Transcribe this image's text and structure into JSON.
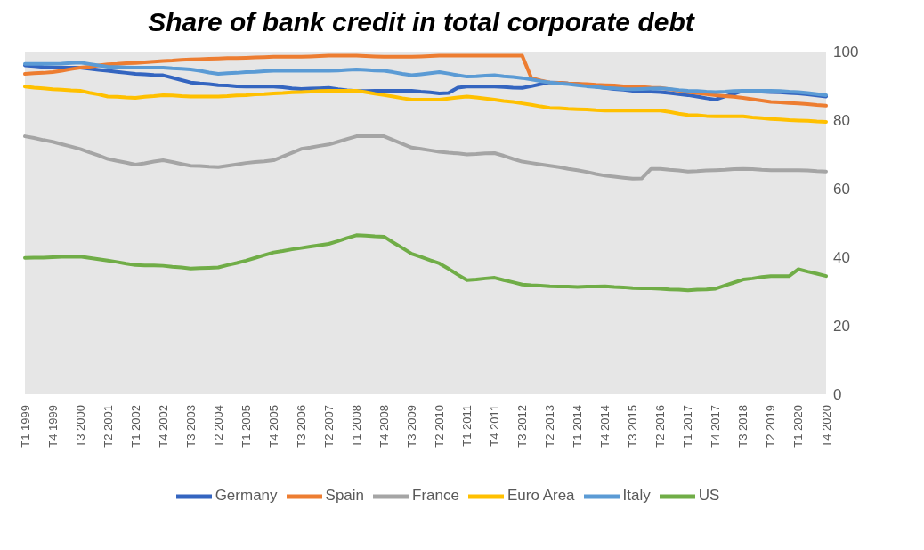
{
  "chart_data": {
    "type": "line",
    "title": "Share of bank credit in total corporate debt",
    "categories": [
      "T1 1999",
      null,
      null,
      "T4 1999",
      null,
      null,
      "T3 2000",
      null,
      null,
      "T2 2001",
      null,
      null,
      "T1 2002",
      null,
      null,
      "T4 2002",
      null,
      null,
      "T3 2003",
      null,
      null,
      "T2 2004",
      null,
      null,
      "T1 2005",
      null,
      null,
      "T4 2005",
      null,
      null,
      "T3 2006",
      null,
      null,
      "T2 2007",
      null,
      null,
      "T1 2008",
      null,
      null,
      "T4 2008",
      null,
      null,
      "T3 2009",
      null,
      null,
      "T2 2010",
      null,
      null,
      "T1 2011",
      null,
      null,
      "T4 2011",
      null,
      null,
      "T3 2012",
      null,
      null,
      "T2 2013",
      null,
      null,
      "T1 2014",
      null,
      null,
      "T4 2014",
      null,
      null,
      "T3 2015",
      null,
      null,
      "T2 2016",
      null,
      null,
      "T1 2017",
      null,
      null,
      "T4 2017",
      null,
      null,
      "T3 2018",
      null,
      null,
      "T2 2019",
      null,
      null,
      "T1 2020",
      null,
      null,
      "T4 2020"
    ],
    "series": [
      {
        "name": "Germany",
        "color": "#3465c0",
        "values": [
          96,
          95.8,
          95.5,
          95.3,
          95.3,
          95.3,
          95.3,
          95,
          94.7,
          94.4,
          94.1,
          93.8,
          93.5,
          93.4,
          93.2,
          93.1,
          92.4,
          91.7,
          91,
          90.7,
          90.5,
          90.2,
          90.1,
          89.9,
          89.8,
          89.8,
          89.8,
          89.8,
          89.6,
          89.3,
          89.1,
          89.2,
          89.3,
          89.4,
          89,
          88.7,
          88.5,
          88.5,
          88.6,
          88.6,
          88.6,
          88.6,
          88.6,
          88.3,
          88.1,
          87.8,
          87.9,
          89.5,
          89.8,
          89.8,
          89.8,
          89.8,
          89.7,
          89.5,
          89.4,
          89.9,
          90.5,
          91,
          90.9,
          90.7,
          90.6,
          90.2,
          89.8,
          89.4,
          89.1,
          88.9,
          88.6,
          88.5,
          88.3,
          88.2,
          87.9,
          87.6,
          87.3,
          86.9,
          86.4,
          86,
          86.9,
          87.7,
          88.6,
          88.5,
          88.3,
          88.2,
          88.1,
          87.9,
          87.8,
          87.5,
          87.2,
          86.9
        ]
      },
      {
        "name": "Spain",
        "color": "#ed7d31",
        "values": [
          93.5,
          93.7,
          93.8,
          94,
          94.4,
          94.9,
          95.3,
          95.6,
          96,
          96.3,
          96.4,
          96.6,
          96.7,
          96.9,
          97.1,
          97.3,
          97.4,
          97.6,
          97.7,
          97.8,
          97.9,
          98,
          98.1,
          98.1,
          98.2,
          98.3,
          98.4,
          98.5,
          98.5,
          98.5,
          98.5,
          98.6,
          98.7,
          98.8,
          98.8,
          98.8,
          98.8,
          98.7,
          98.6,
          98.5,
          98.5,
          98.5,
          98.5,
          98.6,
          98.7,
          98.8,
          98.8,
          98.8,
          98.8,
          98.8,
          98.8,
          98.8,
          98.8,
          98.8,
          98.8,
          92.3,
          91.6,
          91,
          90.9,
          90.7,
          90.6,
          90.5,
          90.3,
          90.2,
          90.1,
          89.9,
          89.8,
          89.7,
          89.5,
          89.4,
          89,
          88.6,
          88.2,
          87.9,
          87.6,
          87.3,
          87,
          86.8,
          86.5,
          86.1,
          85.7,
          85.3,
          85.2,
          85,
          84.9,
          84.7,
          84.4,
          84.2
        ]
      },
      {
        "name": "France",
        "color": "#a5a5a5",
        "values": [
          75.3,
          74.8,
          74.2,
          73.7,
          73,
          72.3,
          71.6,
          70.6,
          69.7,
          68.7,
          68.1,
          67.6,
          67,
          67.4,
          67.9,
          68.3,
          67.8,
          67.2,
          66.7,
          66.6,
          66.4,
          66.3,
          66.7,
          67.1,
          67.5,
          67.8,
          68,
          68.3,
          69.4,
          70.5,
          71.6,
          72,
          72.5,
          72.9,
          73.7,
          74.5,
          75.3,
          75.3,
          75.3,
          75.3,
          74.2,
          73.1,
          72,
          71.6,
          71.2,
          70.8,
          70.5,
          70.3,
          70,
          70.1,
          70.3,
          70.4,
          69.6,
          68.7,
          67.9,
          67.5,
          67.1,
          66.7,
          66.3,
          65.8,
          65.4,
          64.9,
          64.3,
          63.8,
          63.5,
          63.2,
          62.9,
          63,
          65.8,
          65.8,
          65.5,
          65.3,
          65,
          65.1,
          65.3,
          65.4,
          65.5,
          65.7,
          65.8,
          65.7,
          65.5,
          65.4,
          65.4,
          65.4,
          65.4,
          65.3,
          65.1,
          65
        ]
      },
      {
        "name": "Euro Area",
        "color": "#ffc000",
        "values": [
          89.8,
          89.5,
          89.3,
          89,
          88.9,
          88.7,
          88.6,
          88,
          87.5,
          86.9,
          86.8,
          86.6,
          86.5,
          86.8,
          87,
          87.3,
          87.2,
          87,
          86.9,
          86.9,
          86.9,
          86.9,
          87,
          87.2,
          87.3,
          87.5,
          87.6,
          87.8,
          87.9,
          88.1,
          88.2,
          88.3,
          88.5,
          88.6,
          88.6,
          88.6,
          88.6,
          88.2,
          87.7,
          87.3,
          86.9,
          86.4,
          86,
          86,
          86,
          86,
          86.3,
          86.6,
          86.9,
          86.6,
          86.3,
          86,
          85.6,
          85.3,
          84.9,
          84.5,
          84,
          83.6,
          83.5,
          83.3,
          83.2,
          83.1,
          82.9,
          82.8,
          82.8,
          82.8,
          82.8,
          82.8,
          82.8,
          82.8,
          82.4,
          81.9,
          81.5,
          81.4,
          81.2,
          81.1,
          81.1,
          81.1,
          81.1,
          80.8,
          80.6,
          80.3,
          80.2,
          80,
          79.9,
          79.8,
          79.6,
          79.5
        ]
      },
      {
        "name": "Italy",
        "color": "#5b9bd5",
        "values": [
          96.4,
          96.4,
          96.4,
          96.4,
          96.5,
          96.7,
          96.8,
          96.4,
          96,
          95.6,
          95.5,
          95.4,
          95.3,
          95.3,
          95.3,
          95.3,
          95.1,
          95,
          94.8,
          94.4,
          93.9,
          93.5,
          93.7,
          93.8,
          94,
          94.1,
          94.3,
          94.4,
          94.4,
          94.4,
          94.4,
          94.4,
          94.4,
          94.4,
          94.5,
          94.7,
          94.8,
          94.7,
          94.5,
          94.4,
          94,
          93.5,
          93.1,
          93.4,
          93.7,
          94,
          93.6,
          93.1,
          92.7,
          92.8,
          93,
          93.1,
          92.8,
          92.6,
          92.3,
          91.9,
          91.4,
          91,
          90.7,
          90.5,
          90.2,
          89.9,
          89.7,
          89.4,
          89.3,
          89.1,
          89,
          89.1,
          89.2,
          89.3,
          89.1,
          88.8,
          88.6,
          88.5,
          88.3,
          88.2,
          88.3,
          88.5,
          88.6,
          88.6,
          88.6,
          88.6,
          88.5,
          88.3,
          88.2,
          87.9,
          87.6,
          87.3
        ]
      },
      {
        "name": "US",
        "color": "#70ad47",
        "values": [
          39.8,
          39.9,
          39.9,
          40,
          40.1,
          40.1,
          40.2,
          39.8,
          39.4,
          39,
          38.6,
          38.1,
          37.7,
          37.6,
          37.6,
          37.5,
          37.2,
          37,
          36.7,
          36.8,
          36.9,
          37,
          37.7,
          38.3,
          39,
          39.8,
          40.6,
          41.4,
          41.8,
          42.3,
          42.7,
          43.1,
          43.5,
          43.9,
          44.7,
          45.6,
          46.4,
          46.3,
          46.1,
          46,
          44.3,
          42.7,
          41,
          40.1,
          39.1,
          38.2,
          36.6,
          34.9,
          33.3,
          33.5,
          33.8,
          34,
          33.3,
          32.7,
          32,
          31.8,
          31.7,
          31.5,
          31.4,
          31.4,
          31.3,
          31.4,
          31.4,
          31.5,
          31.3,
          31.2,
          31,
          30.9,
          30.9,
          30.8,
          30.6,
          30.5,
          30.3,
          30.5,
          30.6,
          30.8,
          31.7,
          32.6,
          33.5,
          33.8,
          34.2,
          34.5,
          34.5,
          34.5,
          36.5,
          35.8,
          35.2,
          34.5
        ]
      }
    ],
    "ylim": [
      0,
      100
    ],
    "yticks": [
      0,
      20,
      40,
      60,
      80,
      100
    ],
    "legend": "bottom",
    "line_style": "solid"
  }
}
